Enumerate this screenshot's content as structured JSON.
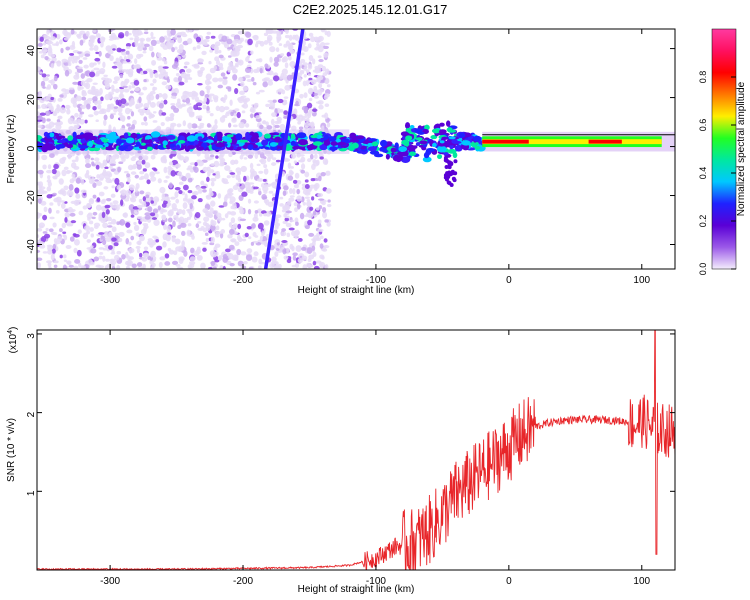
{
  "title": "C2E2.2025.145.12.01.G17",
  "chart_data": [
    {
      "type": "heatmap",
      "name": "spectrogram",
      "xlabel": "Height of straight line (km)",
      "ylabel": "Frequency (Hz)",
      "xlim": [
        -355,
        125
      ],
      "ylim": [
        -50,
        48
      ],
      "x_ticks": [
        -300,
        -200,
        -100,
        0,
        100
      ],
      "x_tick_labels": [
        "-300",
        "-200",
        "-100",
        "0",
        "100"
      ],
      "y_ticks": [
        -40,
        -20,
        0,
        20,
        40
      ],
      "y_tick_labels": [
        "-40",
        "-20",
        "0",
        "20",
        "40"
      ],
      "colorbar": {
        "label": "Normalized spectral amplitude",
        "range": [
          0,
          1
        ],
        "ticks": [
          0.0,
          0.2,
          0.4,
          0.6,
          0.8
        ],
        "tick_labels": [
          "0.0",
          "0.2",
          "0.4",
          "0.6",
          "0.8"
        ],
        "colors": [
          "#f4eefc",
          "#9b59e8",
          "#5a00d6",
          "#1f22ff",
          "#00c8ff",
          "#00e8a0",
          "#22ff22",
          "#ffee00",
          "#ff7800",
          "#ff0000",
          "#ff1060",
          "#ff3aa0"
        ]
      },
      "noise_region_x": [
        -355,
        -135
      ],
      "band_center_hz": 2,
      "diagonal_streak": {
        "x_start": -183,
        "y_start": -50,
        "x_end": -155,
        "y_end": 48
      },
      "hot_band_x": [
        -20,
        115
      ]
    },
    {
      "type": "line",
      "name": "snr",
      "xlabel": "Height of straight line (km)",
      "ylabel": "SNR (10 * v/v)",
      "scale_label": "(x10",
      "scale_exponent": "4",
      "scale_close": ")",
      "xlim": [
        -355,
        125
      ],
      "ylim": [
        0,
        3.05
      ],
      "x_ticks": [
        -300,
        -200,
        -100,
        0,
        100
      ],
      "x_tick_labels": [
        "-300",
        "-200",
        "-100",
        "0",
        "100"
      ],
      "y_ticks": [
        1,
        2,
        3
      ],
      "y_tick_labels": [
        "1",
        "2",
        "3"
      ],
      "color": "#e8262a",
      "series": [
        {
          "name": "SNR",
          "x": [
            -355,
            -300,
            -250,
            -200,
            -150,
            -120,
            -100,
            -85,
            -70,
            -60,
            -50,
            -40,
            -30,
            -20,
            -10,
            0,
            10,
            20,
            30,
            40,
            50,
            60,
            70,
            80,
            90,
            95,
            100,
            105,
            110,
            115,
            120,
            125
          ],
          "values": [
            0.01,
            0.01,
            0.01,
            0.02,
            0.03,
            0.06,
            0.15,
            0.3,
            0.35,
            0.5,
            0.7,
            0.95,
            1.1,
            1.25,
            1.4,
            1.55,
            1.72,
            1.82,
            1.87,
            1.9,
            1.91,
            1.91,
            1.91,
            1.9,
            1.88,
            1.85,
            1.9,
            1.85,
            1.8,
            1.78,
            1.77,
            1.76
          ]
        }
      ],
      "annotations": {
        "spike_x": 110,
        "spike_value": 3.05,
        "dip_x": 111,
        "dip_value": 0.2
      }
    }
  ]
}
